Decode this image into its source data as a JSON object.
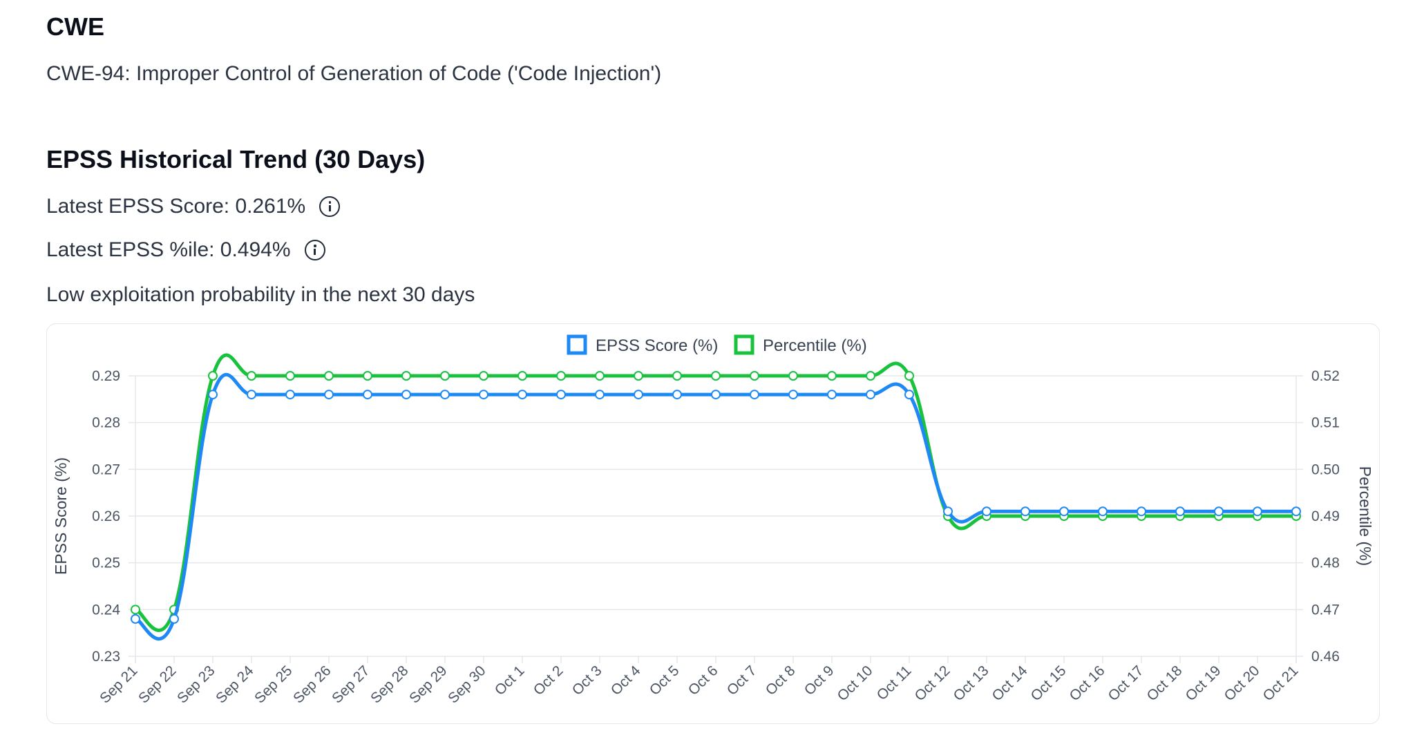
{
  "cwe": {
    "title": "CWE",
    "description": "CWE-94: Improper Control of Generation of Code ('Code Injection')"
  },
  "epss": {
    "title": "EPSS Historical Trend (30 Days)",
    "latest_score_text": "Latest EPSS Score: 0.261%",
    "latest_percentile_text": "Latest EPSS %ile: 0.494%",
    "summary": "Low exploitation probability in the next 30 days"
  },
  "chart_data": {
    "type": "line",
    "categories": [
      "Sep 21",
      "Sep 22",
      "Sep 23",
      "Sep 24",
      "Sep 25",
      "Sep 26",
      "Sep 27",
      "Sep 28",
      "Sep 29",
      "Sep 30",
      "Oct 1",
      "Oct 2",
      "Oct 3",
      "Oct 4",
      "Oct 5",
      "Oct 6",
      "Oct 7",
      "Oct 8",
      "Oct 9",
      "Oct 10",
      "Oct 11",
      "Oct 12",
      "Oct 13",
      "Oct 14",
      "Oct 15",
      "Oct 16",
      "Oct 17",
      "Oct 18",
      "Oct 19",
      "Oct 20",
      "Oct 21"
    ],
    "series": [
      {
        "name": "EPSS Score (%)",
        "color": "#1e88f5",
        "axis": "left",
        "values": [
          0.238,
          0.238,
          0.286,
          0.286,
          0.286,
          0.286,
          0.286,
          0.286,
          0.286,
          0.286,
          0.286,
          0.286,
          0.286,
          0.286,
          0.286,
          0.286,
          0.286,
          0.286,
          0.286,
          0.286,
          0.286,
          0.261,
          0.261,
          0.261,
          0.261,
          0.261,
          0.261,
          0.261,
          0.261,
          0.261,
          0.261
        ]
      },
      {
        "name": "Percentile (%)",
        "color": "#18c23c",
        "axis": "right",
        "values": [
          0.47,
          0.47,
          0.52,
          0.52,
          0.52,
          0.52,
          0.52,
          0.52,
          0.52,
          0.52,
          0.52,
          0.52,
          0.52,
          0.52,
          0.52,
          0.52,
          0.52,
          0.52,
          0.52,
          0.52,
          0.52,
          0.49,
          0.49,
          0.49,
          0.49,
          0.49,
          0.49,
          0.49,
          0.49,
          0.49,
          0.49
        ]
      }
    ],
    "y_left": {
      "label": "EPSS Score (%)",
      "range": [
        0.23,
        0.29
      ],
      "ticks": [
        "0.29",
        "0.28",
        "0.27",
        "0.26",
        "0.25",
        "0.24",
        "0.23"
      ]
    },
    "y_right": {
      "label": "Percentile (%)",
      "range": [
        0.46,
        0.52
      ],
      "ticks": [
        "0.52",
        "0.51",
        "0.50",
        "0.49",
        "0.48",
        "0.47",
        "0.46"
      ]
    },
    "legend": {
      "position": "top-center",
      "labels": [
        "EPSS Score (%)",
        "Percentile (%)"
      ]
    },
    "grid": true
  }
}
